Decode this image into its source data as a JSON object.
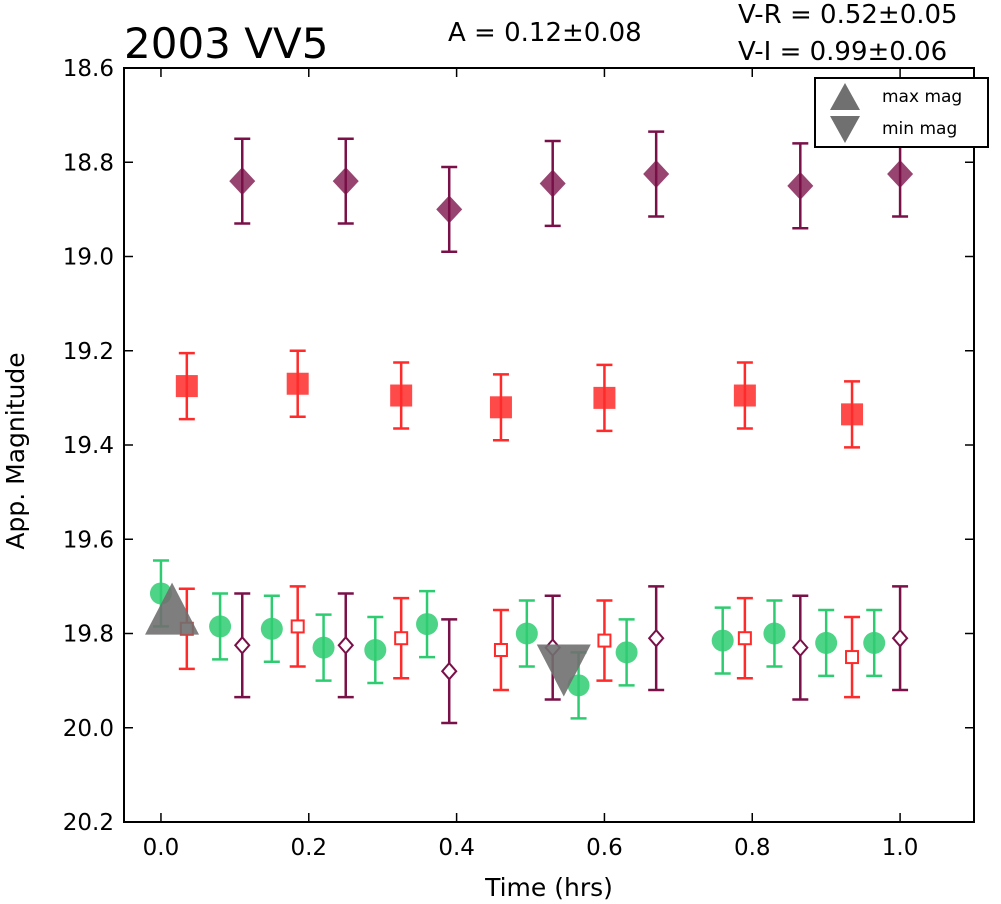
{
  "chart_data": {
    "type": "scatter",
    "title": "2003 VV5",
    "xlabel": "Time (hrs)",
    "ylabel": "App. Magnitude",
    "xlim": [
      -0.05,
      1.1
    ],
    "ylim": [
      20.2,
      18.6
    ],
    "y_inverted": true,
    "grid": false,
    "xticks": [
      "0.0",
      "0.2",
      "0.4",
      "0.6",
      "0.8",
      "1.0"
    ],
    "yticks": [
      "18.6",
      "18.8",
      "19.0",
      "19.2",
      "19.4",
      "19.6",
      "19.8",
      "20.0",
      "20.2"
    ],
    "annotations": {
      "amplitude": "A  = 0.12±0.08",
      "v_minus_r": "V-R = 0.52±0.05",
      "v_minus_i": "V-I  = 0.99±0.06"
    },
    "legend": {
      "placement": "top-right",
      "entries": [
        "max mag",
        "min mag"
      ]
    },
    "colors": {
      "green": "#2ecc71",
      "red": "#ff2a2a",
      "purple": "#7a1048",
      "marker_grey": "#707070"
    },
    "series": [
      {
        "marker": "diamond-filled",
        "color": "#7a1048",
        "points": [
          {
            "x": 0.11,
            "y": 18.84,
            "err": 0.09
          },
          {
            "x": 0.25,
            "y": 18.84,
            "err": 0.09
          },
          {
            "x": 0.39,
            "y": 18.9,
            "err": 0.09
          },
          {
            "x": 0.53,
            "y": 18.845,
            "err": 0.09
          },
          {
            "x": 0.67,
            "y": 18.825,
            "err": 0.09
          },
          {
            "x": 0.865,
            "y": 18.85,
            "err": 0.09
          },
          {
            "x": 1.0,
            "y": 18.825,
            "err": 0.09
          }
        ]
      },
      {
        "marker": "square-filled",
        "color": "#ff2a2a",
        "points": [
          {
            "x": 0.035,
            "y": 19.275,
            "err": 0.07
          },
          {
            "x": 0.185,
            "y": 19.27,
            "err": 0.07
          },
          {
            "x": 0.325,
            "y": 19.295,
            "err": 0.07
          },
          {
            "x": 0.46,
            "y": 19.32,
            "err": 0.07
          },
          {
            "x": 0.6,
            "y": 19.3,
            "err": 0.07
          },
          {
            "x": 0.79,
            "y": 19.295,
            "err": 0.07
          },
          {
            "x": 0.935,
            "y": 19.335,
            "err": 0.07
          }
        ]
      },
      {
        "marker": "circle-filled",
        "color": "#2ecc71",
        "points": [
          {
            "x": 0.0,
            "y": 19.715,
            "err": 0.07
          },
          {
            "x": 0.08,
            "y": 19.785,
            "err": 0.07
          },
          {
            "x": 0.15,
            "y": 19.79,
            "err": 0.07
          },
          {
            "x": 0.22,
            "y": 19.83,
            "err": 0.07
          },
          {
            "x": 0.29,
            "y": 19.835,
            "err": 0.07
          },
          {
            "x": 0.36,
            "y": 19.78,
            "err": 0.07
          },
          {
            "x": 0.495,
            "y": 19.8,
            "err": 0.07
          },
          {
            "x": 0.565,
            "y": 19.91,
            "err": 0.07
          },
          {
            "x": 0.63,
            "y": 19.84,
            "err": 0.07
          },
          {
            "x": 0.76,
            "y": 19.815,
            "err": 0.07
          },
          {
            "x": 0.83,
            "y": 19.8,
            "err": 0.07
          },
          {
            "x": 0.9,
            "y": 19.82,
            "err": 0.07
          },
          {
            "x": 0.965,
            "y": 19.82,
            "err": 0.07
          }
        ]
      },
      {
        "marker": "square-open",
        "color": "#ff2a2a",
        "points": [
          {
            "x": 0.035,
            "y": 19.79,
            "err": 0.085
          },
          {
            "x": 0.185,
            "y": 19.785,
            "err": 0.085
          },
          {
            "x": 0.325,
            "y": 19.81,
            "err": 0.085
          },
          {
            "x": 0.46,
            "y": 19.835,
            "err": 0.085
          },
          {
            "x": 0.6,
            "y": 19.815,
            "err": 0.085
          },
          {
            "x": 0.79,
            "y": 19.81,
            "err": 0.085
          },
          {
            "x": 0.935,
            "y": 19.85,
            "err": 0.085
          }
        ]
      },
      {
        "marker": "diamond-open",
        "color": "#7a1048",
        "points": [
          {
            "x": 0.11,
            "y": 19.825,
            "err": 0.11
          },
          {
            "x": 0.25,
            "y": 19.825,
            "err": 0.11
          },
          {
            "x": 0.39,
            "y": 19.88,
            "err": 0.11
          },
          {
            "x": 0.53,
            "y": 19.83,
            "err": 0.11
          },
          {
            "x": 0.67,
            "y": 19.81,
            "err": 0.11
          },
          {
            "x": 0.865,
            "y": 19.83,
            "err": 0.11
          },
          {
            "x": 1.0,
            "y": 19.81,
            "err": 0.11
          }
        ]
      },
      {
        "marker": "triangle-up",
        "color": "#707070",
        "legend": "max mag",
        "points": [
          {
            "x": 0.015,
            "y": 19.76
          }
        ]
      },
      {
        "marker": "triangle-down",
        "color": "#707070",
        "legend": "min mag",
        "points": [
          {
            "x": 0.545,
            "y": 19.87
          }
        ]
      }
    ]
  }
}
